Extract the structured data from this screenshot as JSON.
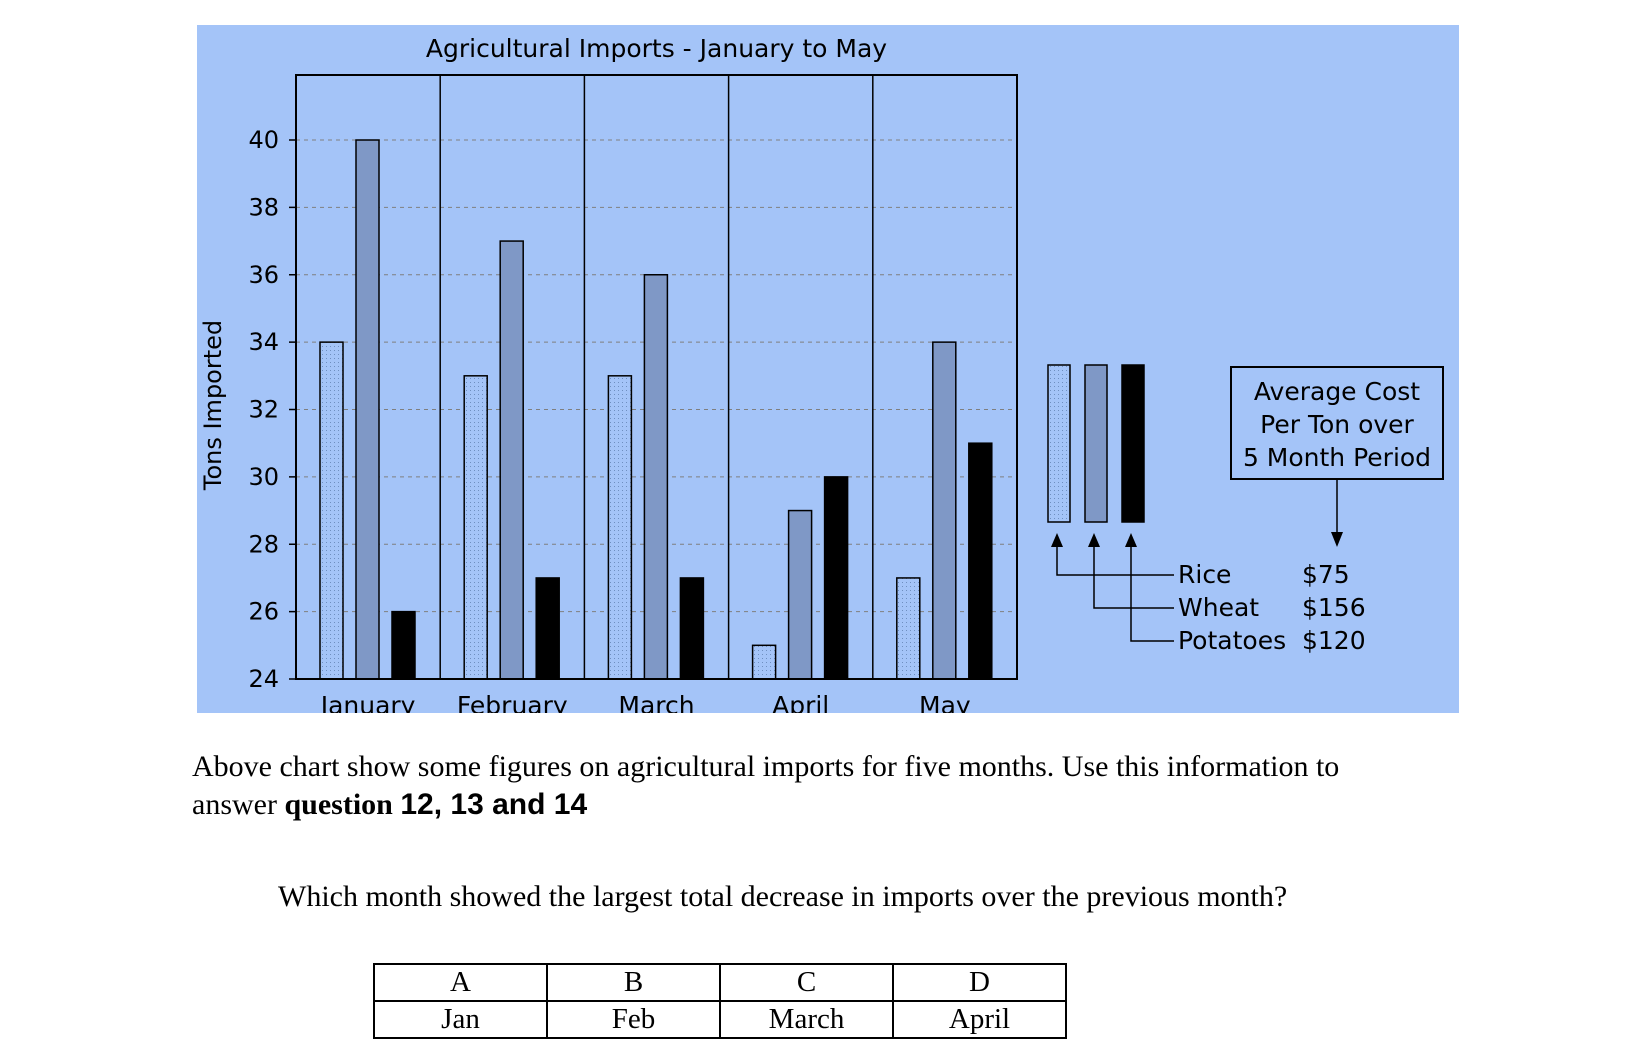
{
  "chart_data": {
    "type": "bar",
    "title": "Agricultural Imports - January to May",
    "ylabel": "Tons Imported",
    "xlabel": "",
    "categories": [
      "January",
      "February",
      "March",
      "April",
      "May"
    ],
    "ylim": [
      24,
      41
    ],
    "yticks": [
      24,
      26,
      28,
      30,
      32,
      34,
      36,
      38,
      40
    ],
    "grid": true,
    "series": [
      {
        "name": "Rice",
        "values": [
          34,
          33,
          33,
          25,
          27
        ],
        "color": "#a4c4f8",
        "pattern": "dotted"
      },
      {
        "name": "Wheat",
        "values": [
          40,
          37,
          36,
          29,
          34
        ],
        "color": "#7f98c6",
        "pattern": "solid"
      },
      {
        "name": "Potatoes",
        "values": [
          26,
          27,
          27,
          30,
          31
        ],
        "color": "#000000",
        "pattern": "solid"
      }
    ],
    "legend": {
      "placement": "right",
      "box_lines": [
        "Average Cost",
        "Per Ton over",
        "5 Month Period"
      ],
      "costs": [
        "$75",
        "$156",
        "$120"
      ]
    }
  },
  "text": {
    "para_lines": [
      "Above chart show some figures on agricultural imports for five months. Use this information to",
      "answer"
    ],
    "para_bold_serif": "question",
    "para_bold_sans": "12, 13 and 14",
    "question": "Which month showed the largest total decrease in imports over the previous month?"
  },
  "answers": {
    "letters": [
      "A",
      "B",
      "C",
      "D"
    ],
    "months": [
      "Jan",
      "Feb",
      "March",
      "April"
    ]
  }
}
